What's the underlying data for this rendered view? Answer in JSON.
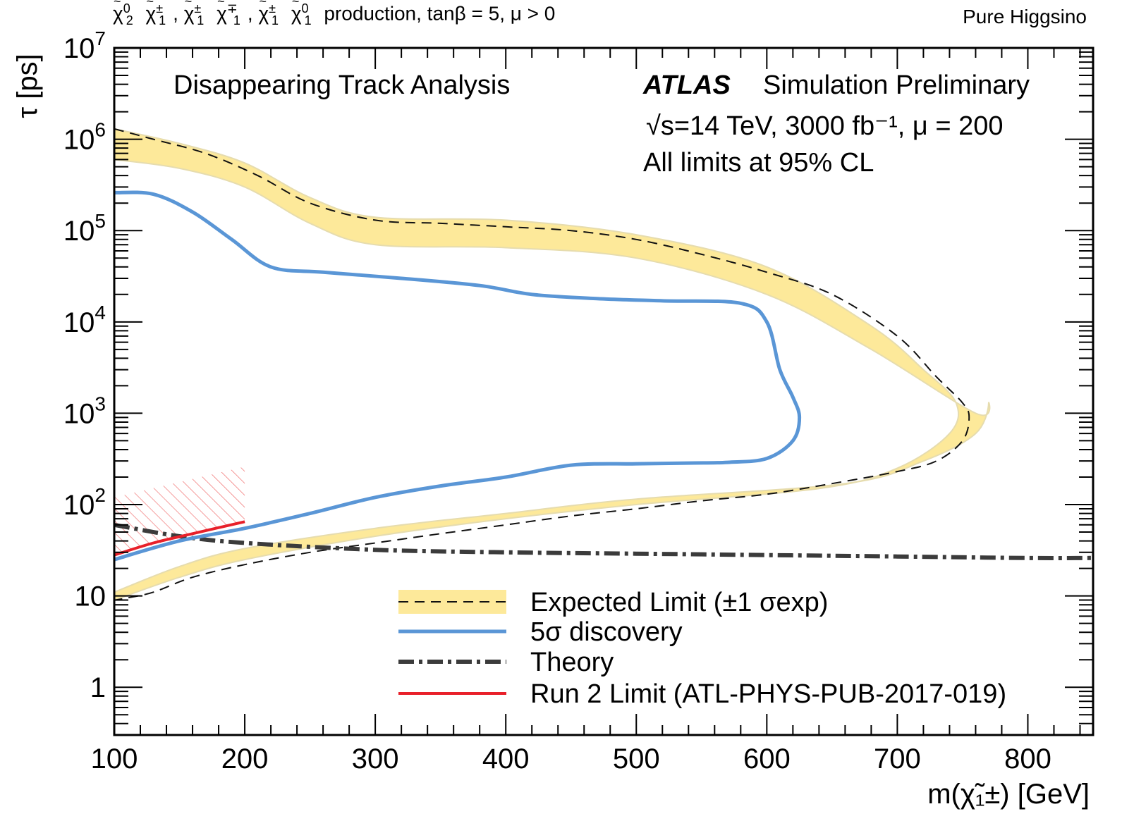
{
  "header": {
    "process_rest": "production, tanβ = 5, μ > 0",
    "right_label": "Pure Higgsino"
  },
  "annotations": {
    "analysis": "Disappearing Track Analysis",
    "atlas": "ATLAS",
    "simulation": "Simulation Preliminary",
    "energy": "√s=14 TeV, 3000 fb⁻¹, μ = 200",
    "cl": "All limits at 95% CL"
  },
  "colors": {
    "band": "#fde99a",
    "band_edge": "#e6dcae",
    "discovery": "#5a96d6",
    "theory": "#3b3b3b",
    "run2": "#e8202a",
    "hatch": "#f07070"
  },
  "chart_data": {
    "type": "line",
    "xlabel": "m(χ̃₁±) [GeV]",
    "ylabel": "τ [ps]",
    "xlim": [
      100,
      850
    ],
    "ylim": [
      0.3,
      10000000
    ],
    "yscale": "log",
    "xticks": [
      "100",
      "200",
      "300",
      "400",
      "500",
      "600",
      "700",
      "800"
    ],
    "xtick_values": [
      100,
      200,
      300,
      400,
      500,
      600,
      700,
      800
    ],
    "yticks": [
      "1",
      "10",
      "10^2",
      "10^3",
      "10^4",
      "10^5",
      "10^6",
      "10^7"
    ],
    "ytick_values": [
      1,
      10,
      100,
      1000,
      10000,
      100000,
      1000000,
      10000000
    ],
    "legend_position": "bottom-center",
    "series": [
      {
        "name": "Expected Limit (±1 σexp)",
        "style": "dashed-with-band",
        "upper": [
          [
            100,
            1300000
          ],
          [
            150,
            900000
          ],
          [
            200,
            550000
          ],
          [
            250,
            230000
          ],
          [
            300,
            140000
          ],
          [
            400,
            130000
          ],
          [
            500,
            90000
          ],
          [
            600,
            40000
          ],
          [
            680,
            9000
          ],
          [
            720,
            3000
          ],
          [
            745,
            1300
          ],
          [
            740,
            600
          ],
          [
            700,
            250
          ],
          [
            640,
            150
          ],
          [
            500,
            100
          ],
          [
            400,
            70
          ],
          [
            300,
            45
          ],
          [
            200,
            25
          ],
          [
            150,
            16
          ],
          [
            100,
            9
          ]
        ],
        "lower": [
          [
            100,
            600000
          ],
          [
            150,
            480000
          ],
          [
            200,
            300000
          ],
          [
            250,
            120000
          ],
          [
            300,
            70000
          ],
          [
            400,
            65000
          ],
          [
            500,
            50000
          ],
          [
            600,
            20000
          ],
          [
            680,
            5000
          ],
          [
            760,
            1000
          ],
          [
            770,
            1300
          ],
          [
            760,
            600
          ],
          [
            720,
            300
          ],
          [
            660,
            170
          ],
          [
            500,
            115
          ],
          [
            400,
            80
          ],
          [
            300,
            55
          ],
          [
            200,
            33
          ],
          [
            150,
            21
          ],
          [
            100,
            11
          ]
        ],
        "x": [
          100,
          130,
          170,
          210,
          250,
          300,
          350,
          400,
          450,
          500,
          550,
          600,
          650,
          700,
          730,
          750,
          755,
          750,
          730,
          700,
          650,
          600,
          550,
          500,
          450,
          400,
          350,
          300,
          250,
          200,
          160,
          130,
          110,
          100
        ],
        "y": [
          1300000,
          1000000,
          700000,
          400000,
          200000,
          130000,
          120000,
          110000,
          100000,
          80000,
          55000,
          35000,
          20000,
          7000,
          2500,
          1300,
          900,
          500,
          300,
          230,
          170,
          130,
          110,
          90,
          75,
          60,
          48,
          38,
          30,
          22,
          16,
          11,
          9.5,
          9
        ]
      },
      {
        "name": "5σ discovery",
        "style": "solid",
        "x": [
          100,
          130,
          160,
          190,
          220,
          260,
          320,
          380,
          420,
          470,
          520,
          580,
          600,
          610,
          620,
          625,
          620,
          600,
          570,
          540,
          500,
          450,
          400,
          350,
          300,
          250,
          200,
          150,
          100
        ],
        "y": [
          260000,
          250000,
          160000,
          80000,
          40000,
          35000,
          30000,
          25000,
          20000,
          18000,
          17000,
          16000,
          10000,
          3000,
          1500,
          900,
          500,
          320,
          290,
          285,
          280,
          270,
          200,
          160,
          120,
          80,
          55,
          40,
          25
        ]
      },
      {
        "name": "Theory",
        "style": "dash-dot",
        "x": [
          100,
          150,
          200,
          300,
          400,
          500,
          600,
          700,
          800,
          850
        ],
        "y": [
          60,
          45,
          38,
          32,
          30,
          29,
          28,
          27,
          26,
          26
        ]
      },
      {
        "name": "Run 2 Limit (ATL-PHYS-PUB-2017-019)",
        "style": "solid",
        "x": [
          100,
          130,
          160,
          200
        ],
        "y": [
          28,
          38,
          48,
          65
        ]
      }
    ],
    "excluded_region": {
      "x": [
        100,
        200
      ],
      "y_low": [
        28,
        65
      ],
      "y_high": [
        120,
        260
      ]
    }
  }
}
